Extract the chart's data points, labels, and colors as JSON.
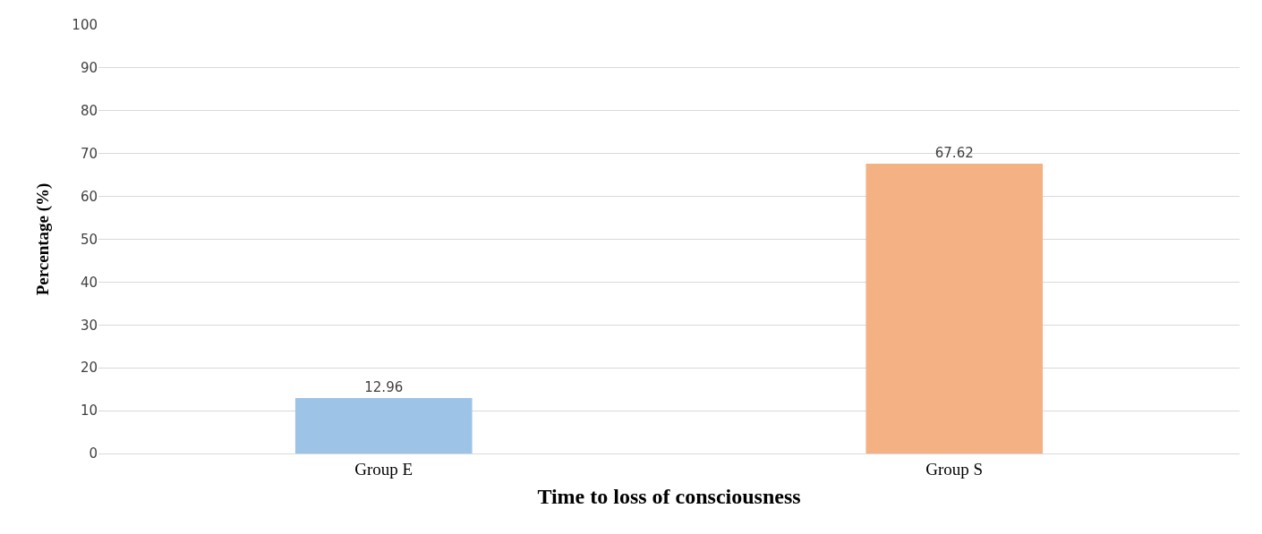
{
  "chart_data": {
    "type": "bar",
    "xlabel": "Time to loss of consciousness",
    "ylabel": "Percentage (%)",
    "categories": [
      "Group E",
      "Group S"
    ],
    "values": [
      12.96,
      67.62
    ],
    "colors": [
      "#9dc3e6",
      "#f4b183"
    ],
    "ylim": [
      0,
      100
    ],
    "yticks": [
      0,
      10,
      20,
      30,
      40,
      50,
      60,
      70,
      80,
      90,
      100
    ],
    "grid": "y",
    "data_labels": true
  }
}
